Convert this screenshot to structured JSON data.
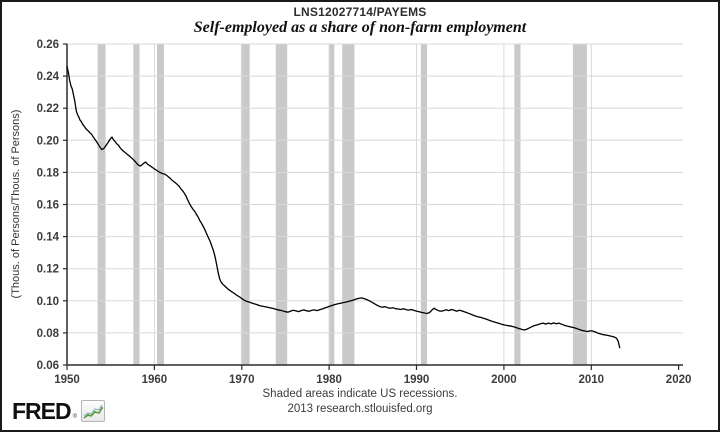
{
  "header": {
    "series_id": "LNS12027714/PAYEMS",
    "title": "Self-employed as a share of non-farm employment"
  },
  "footer": {
    "note": "Shaded areas indicate US recessions.",
    "source": "2013 research.stlouisfed.org",
    "logo_text": "FRED",
    "logo_reg": "®"
  },
  "colors": {
    "line": "#000000",
    "recession_band": "#c9c9c9",
    "grid": "#dbd8d8",
    "axis": "#2b2b2b",
    "tick_text": "#3c3c3c",
    "logo_green": "#5a9e3c",
    "logo_blue": "#9ab8cc"
  },
  "chart_data": {
    "type": "line",
    "title": "Self-employed as a share of non-farm employment",
    "series_label": "LNS12027714/PAYEMS",
    "xlabel": "",
    "ylabel": "(Thous. of Persons/Thous. of Persons)",
    "xlim": [
      1950,
      2020.5
    ],
    "ylim": [
      0.06,
      0.26
    ],
    "x_ticks": [
      1950,
      1960,
      1970,
      1980,
      1990,
      2000,
      2010,
      2020
    ],
    "y_ticks": [
      0.06,
      0.08,
      0.1,
      0.12,
      0.14,
      0.16,
      0.18,
      0.2,
      0.22,
      0.24,
      0.26
    ],
    "grid": true,
    "legend": "none",
    "recessions": [
      [
        1953.5,
        1954.4
      ],
      [
        1957.6,
        1958.3
      ],
      [
        1960.3,
        1961.1
      ],
      [
        1969.9,
        1970.9
      ],
      [
        1973.9,
        1975.2
      ],
      [
        1980.0,
        1980.6
      ],
      [
        1981.5,
        1982.9
      ],
      [
        1990.5,
        1991.2
      ],
      [
        2001.2,
        2001.9
      ],
      [
        2007.9,
        2009.5
      ]
    ],
    "points": [
      [
        1950.0,
        0.246
      ],
      [
        1950.15,
        0.2425
      ],
      [
        1950.3,
        0.2375
      ],
      [
        1950.45,
        0.234
      ],
      [
        1950.6,
        0.232
      ],
      [
        1950.75,
        0.228
      ],
      [
        1950.9,
        0.224
      ],
      [
        1951.05,
        0.2185
      ],
      [
        1951.2,
        0.216
      ],
      [
        1951.35,
        0.2145
      ],
      [
        1951.5,
        0.2125
      ],
      [
        1951.65,
        0.2115
      ],
      [
        1951.8,
        0.21
      ],
      [
        1952.0,
        0.2085
      ],
      [
        1952.2,
        0.207
      ],
      [
        1952.4,
        0.206
      ],
      [
        1952.6,
        0.2048
      ],
      [
        1952.8,
        0.2038
      ],
      [
        1953.0,
        0.2022
      ],
      [
        1953.2,
        0.2005
      ],
      [
        1953.4,
        0.199
      ],
      [
        1953.6,
        0.1972
      ],
      [
        1953.8,
        0.1955
      ],
      [
        1954.0,
        0.1942
      ],
      [
        1954.2,
        0.1948
      ],
      [
        1954.4,
        0.1962
      ],
      [
        1954.6,
        0.1978
      ],
      [
        1954.8,
        0.1995
      ],
      [
        1955.0,
        0.2012
      ],
      [
        1955.15,
        0.202
      ],
      [
        1955.3,
        0.2005
      ],
      [
        1955.5,
        0.1992
      ],
      [
        1955.7,
        0.1978
      ],
      [
        1955.9,
        0.1968
      ],
      [
        1956.1,
        0.1952
      ],
      [
        1956.3,
        0.194
      ],
      [
        1956.5,
        0.193
      ],
      [
        1956.7,
        0.1922
      ],
      [
        1956.9,
        0.1912
      ],
      [
        1957.1,
        0.1904
      ],
      [
        1957.3,
        0.1895
      ],
      [
        1957.5,
        0.1885
      ],
      [
        1957.8,
        0.1868
      ],
      [
        1958.0,
        0.1855
      ],
      [
        1958.2,
        0.1845
      ],
      [
        1958.4,
        0.184
      ],
      [
        1958.6,
        0.1848
      ],
      [
        1958.8,
        0.1858
      ],
      [
        1959.0,
        0.1864
      ],
      [
        1959.2,
        0.1852
      ],
      [
        1959.4,
        0.1845
      ],
      [
        1959.6,
        0.1838
      ],
      [
        1959.8,
        0.183
      ],
      [
        1960.0,
        0.1822
      ],
      [
        1960.2,
        0.1815
      ],
      [
        1960.4,
        0.1808
      ],
      [
        1960.6,
        0.18
      ],
      [
        1960.8,
        0.1796
      ],
      [
        1961.0,
        0.1792
      ],
      [
        1961.2,
        0.1788
      ],
      [
        1961.4,
        0.1782
      ],
      [
        1961.6,
        0.1772
      ],
      [
        1961.8,
        0.1763
      ],
      [
        1962.0,
        0.1752
      ],
      [
        1962.2,
        0.1744
      ],
      [
        1962.4,
        0.1735
      ],
      [
        1962.6,
        0.1726
      ],
      [
        1962.8,
        0.1716
      ],
      [
        1963.0,
        0.17
      ],
      [
        1963.2,
        0.1688
      ],
      [
        1963.4,
        0.1672
      ],
      [
        1963.6,
        0.1655
      ],
      [
        1963.8,
        0.163
      ],
      [
        1964.0,
        0.1608
      ],
      [
        1964.2,
        0.1588
      ],
      [
        1964.4,
        0.1572
      ],
      [
        1964.6,
        0.1558
      ],
      [
        1964.8,
        0.154
      ],
      [
        1965.0,
        0.1522
      ],
      [
        1965.2,
        0.15
      ],
      [
        1965.4,
        0.1482
      ],
      [
        1965.6,
        0.1462
      ],
      [
        1965.8,
        0.144
      ],
      [
        1966.0,
        0.1415
      ],
      [
        1966.2,
        0.1392
      ],
      [
        1966.4,
        0.1368
      ],
      [
        1966.6,
        0.1338
      ],
      [
        1966.8,
        0.1305
      ],
      [
        1967.0,
        0.1262
      ],
      [
        1967.15,
        0.122
      ],
      [
        1967.3,
        0.1175
      ],
      [
        1967.45,
        0.114
      ],
      [
        1967.6,
        0.112
      ],
      [
        1967.75,
        0.1108
      ],
      [
        1967.9,
        0.11
      ],
      [
        1968.1,
        0.109
      ],
      [
        1968.3,
        0.108
      ],
      [
        1968.5,
        0.107
      ],
      [
        1968.7,
        0.1062
      ],
      [
        1968.9,
        0.1055
      ],
      [
        1969.1,
        0.1048
      ],
      [
        1969.3,
        0.104
      ],
      [
        1969.5,
        0.1032
      ],
      [
        1969.7,
        0.1026
      ],
      [
        1969.9,
        0.1018
      ],
      [
        1970.1,
        0.101
      ],
      [
        1970.3,
        0.1003
      ],
      [
        1970.5,
        0.0998
      ],
      [
        1970.7,
        0.0995
      ],
      [
        1970.9,
        0.0991
      ],
      [
        1971.1,
        0.0987
      ],
      [
        1971.4,
        0.0982
      ],
      [
        1971.7,
        0.0977
      ],
      [
        1972.0,
        0.0971
      ],
      [
        1972.3,
        0.0967
      ],
      [
        1972.6,
        0.0964
      ],
      [
        1972.9,
        0.0961
      ],
      [
        1973.2,
        0.0957
      ],
      [
        1973.5,
        0.0953
      ],
      [
        1973.8,
        0.0949
      ],
      [
        1974.1,
        0.0944
      ],
      [
        1974.4,
        0.0941
      ],
      [
        1974.7,
        0.0937
      ],
      [
        1975.0,
        0.0932
      ],
      [
        1975.3,
        0.0929
      ],
      [
        1975.6,
        0.0936
      ],
      [
        1975.9,
        0.0941
      ],
      [
        1976.2,
        0.0937
      ],
      [
        1976.5,
        0.0933
      ],
      [
        1976.8,
        0.0939
      ],
      [
        1977.1,
        0.0943
      ],
      [
        1977.4,
        0.0938
      ],
      [
        1977.7,
        0.0935
      ],
      [
        1978.0,
        0.094
      ],
      [
        1978.3,
        0.0943
      ],
      [
        1978.6,
        0.0939
      ],
      [
        1978.9,
        0.0944
      ],
      [
        1979.2,
        0.0949
      ],
      [
        1979.5,
        0.0955
      ],
      [
        1979.8,
        0.0961
      ],
      [
        1980.1,
        0.0967
      ],
      [
        1980.4,
        0.0972
      ],
      [
        1980.7,
        0.0977
      ],
      [
        1981.0,
        0.0981
      ],
      [
        1981.3,
        0.0985
      ],
      [
        1981.6,
        0.0989
      ],
      [
        1981.9,
        0.0992
      ],
      [
        1982.2,
        0.0996
      ],
      [
        1982.5,
        0.1
      ],
      [
        1982.8,
        0.1005
      ],
      [
        1983.1,
        0.1011
      ],
      [
        1983.4,
        0.1015
      ],
      [
        1983.7,
        0.1018
      ],
      [
        1984.0,
        0.1014
      ],
      [
        1984.3,
        0.1008
      ],
      [
        1984.6,
        0.1
      ],
      [
        1984.9,
        0.0991
      ],
      [
        1985.2,
        0.0981
      ],
      [
        1985.5,
        0.0972
      ],
      [
        1985.8,
        0.0964
      ],
      [
        1986.1,
        0.096
      ],
      [
        1986.4,
        0.0964
      ],
      [
        1986.7,
        0.0957
      ],
      [
        1987.0,
        0.0953
      ],
      [
        1987.3,
        0.0957
      ],
      [
        1987.6,
        0.0951
      ],
      [
        1987.9,
        0.0949
      ],
      [
        1988.2,
        0.0946
      ],
      [
        1988.5,
        0.0951
      ],
      [
        1988.8,
        0.0945
      ],
      [
        1989.1,
        0.0942
      ],
      [
        1989.4,
        0.0946
      ],
      [
        1989.7,
        0.094
      ],
      [
        1990.0,
        0.0936
      ],
      [
        1990.3,
        0.0932
      ],
      [
        1990.6,
        0.0928
      ],
      [
        1990.9,
        0.0924
      ],
      [
        1991.2,
        0.0921
      ],
      [
        1991.5,
        0.0927
      ],
      [
        1991.8,
        0.0944
      ],
      [
        1992.0,
        0.0954
      ],
      [
        1992.2,
        0.0947
      ],
      [
        1992.5,
        0.0939
      ],
      [
        1992.8,
        0.0935
      ],
      [
        1993.1,
        0.0939
      ],
      [
        1993.4,
        0.0944
      ],
      [
        1993.7,
        0.0939
      ],
      [
        1994.0,
        0.0946
      ],
      [
        1994.3,
        0.0941
      ],
      [
        1994.6,
        0.0935
      ],
      [
        1994.9,
        0.0941
      ],
      [
        1995.2,
        0.0937
      ],
      [
        1995.5,
        0.0931
      ],
      [
        1995.8,
        0.0925
      ],
      [
        1996.1,
        0.0919
      ],
      [
        1996.4,
        0.0912
      ],
      [
        1996.7,
        0.0906
      ],
      [
        1997.0,
        0.0901
      ],
      [
        1997.3,
        0.0897
      ],
      [
        1997.6,
        0.0892
      ],
      [
        1997.9,
        0.0887
      ],
      [
        1998.2,
        0.0881
      ],
      [
        1998.5,
        0.0875
      ],
      [
        1998.8,
        0.0869
      ],
      [
        1999.1,
        0.0865
      ],
      [
        1999.4,
        0.086
      ],
      [
        1999.7,
        0.0855
      ],
      [
        2000.0,
        0.085
      ],
      [
        2000.3,
        0.0847
      ],
      [
        2000.6,
        0.0844
      ],
      [
        2000.9,
        0.0841
      ],
      [
        2001.2,
        0.0837
      ],
      [
        2001.5,
        0.0831
      ],
      [
        2001.8,
        0.0826
      ],
      [
        2002.1,
        0.0821
      ],
      [
        2002.4,
        0.0818
      ],
      [
        2002.7,
        0.0825
      ],
      [
        2003.0,
        0.0833
      ],
      [
        2003.3,
        0.0841
      ],
      [
        2003.6,
        0.0847
      ],
      [
        2003.9,
        0.0852
      ],
      [
        2004.2,
        0.0857
      ],
      [
        2004.5,
        0.0861
      ],
      [
        2004.8,
        0.0855
      ],
      [
        2005.1,
        0.0861
      ],
      [
        2005.4,
        0.0856
      ],
      [
        2005.7,
        0.0862
      ],
      [
        2006.0,
        0.0857
      ],
      [
        2006.3,
        0.0861
      ],
      [
        2006.6,
        0.0854
      ],
      [
        2006.9,
        0.0848
      ],
      [
        2007.2,
        0.0843
      ],
      [
        2007.5,
        0.0839
      ],
      [
        2007.8,
        0.0835
      ],
      [
        2008.1,
        0.0831
      ],
      [
        2008.4,
        0.0826
      ],
      [
        2008.7,
        0.082
      ],
      [
        2009.0,
        0.0815
      ],
      [
        2009.3,
        0.0811
      ],
      [
        2009.6,
        0.0809
      ],
      [
        2009.9,
        0.0813
      ],
      [
        2010.2,
        0.0811
      ],
      [
        2010.5,
        0.0805
      ],
      [
        2010.8,
        0.0798
      ],
      [
        2011.1,
        0.0793
      ],
      [
        2011.4,
        0.0789
      ],
      [
        2011.7,
        0.0786
      ],
      [
        2012.0,
        0.0783
      ],
      [
        2012.3,
        0.0779
      ],
      [
        2012.6,
        0.0775
      ],
      [
        2012.9,
        0.0767
      ],
      [
        2013.1,
        0.0745
      ],
      [
        2013.25,
        0.0708
      ]
    ]
  }
}
